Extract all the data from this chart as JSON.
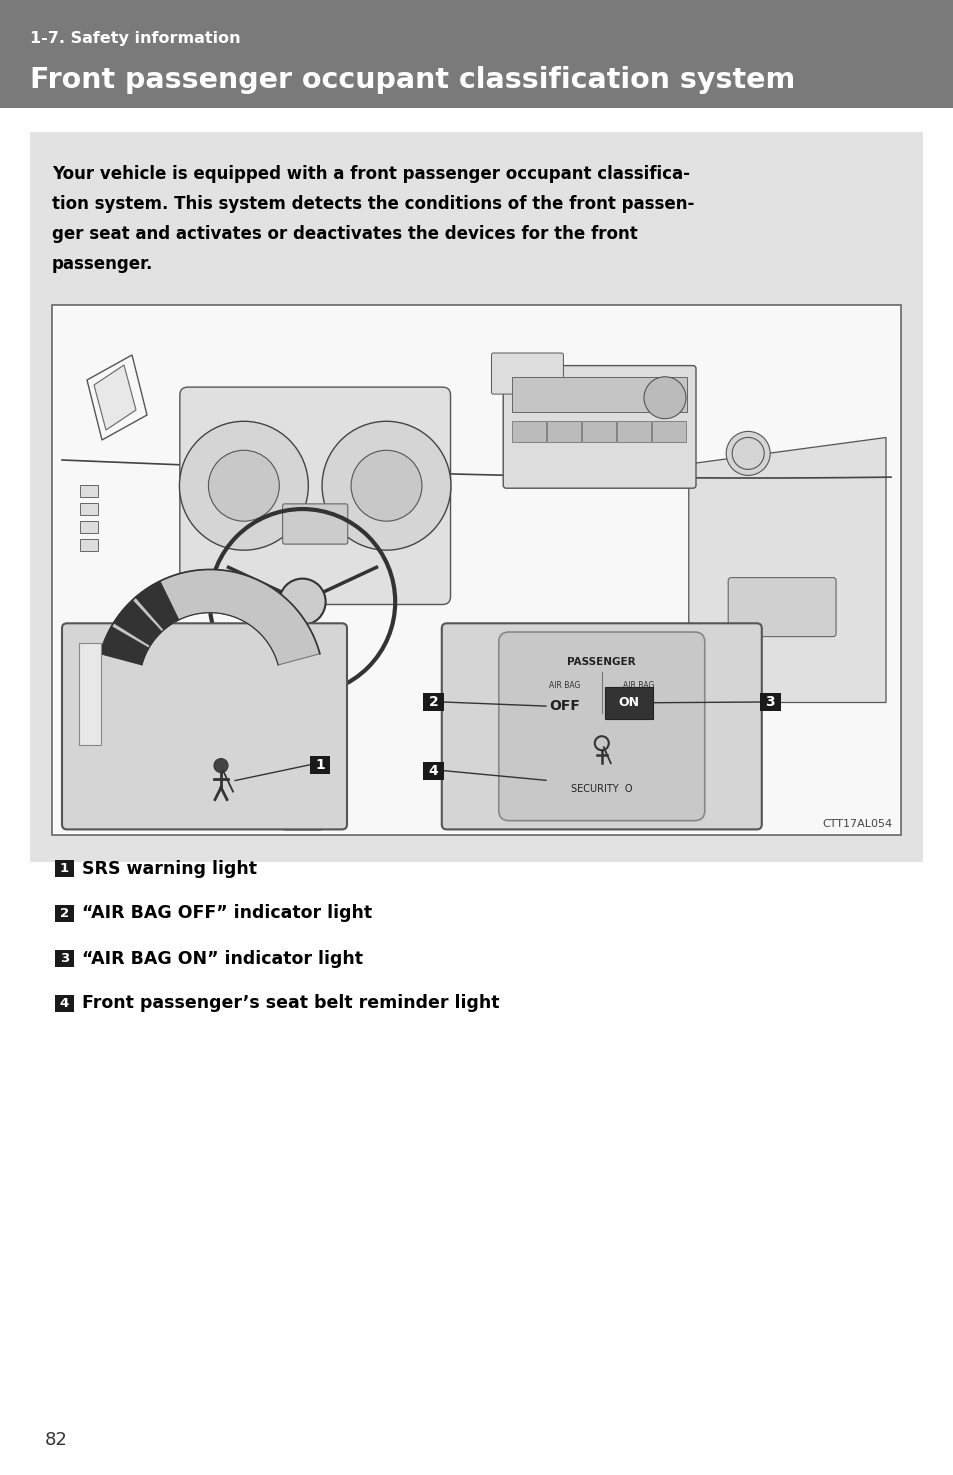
{
  "page_bg": "#ffffff",
  "header_bg": "#7a7a7a",
  "header_subtitle": "1-7. Safety information",
  "header_title": "Front passenger occupant classification system",
  "header_subtitle_color": "#ffffff",
  "header_title_color": "#ffffff",
  "content_bg": "#e2e2e2",
  "content_border_color": "#cccccc",
  "body_text_lines": [
    "Your vehicle is equipped with a front passenger occupant classifica-",
    "tion system. This system detects the conditions of the front passen-",
    "ger seat and activates or deactivates the devices for the front",
    "passenger."
  ],
  "body_text_color": "#000000",
  "figure_bg": "#ffffff",
  "figure_border": "#666666",
  "image_code": "CTT17AL054",
  "labels": [
    {
      "num": "1",
      "text": "SRS warning light"
    },
    {
      "num": "2",
      "text": "“AIR BAG OFF” indicator light"
    },
    {
      "num": "3",
      "text": "“AIR BAG ON” indicator light"
    },
    {
      "num": "4",
      "text": "Front passenger’s seat belt reminder light"
    }
  ],
  "label_box_color": "#1a1a1a",
  "label_text_color": "#ffffff",
  "page_number": "82"
}
